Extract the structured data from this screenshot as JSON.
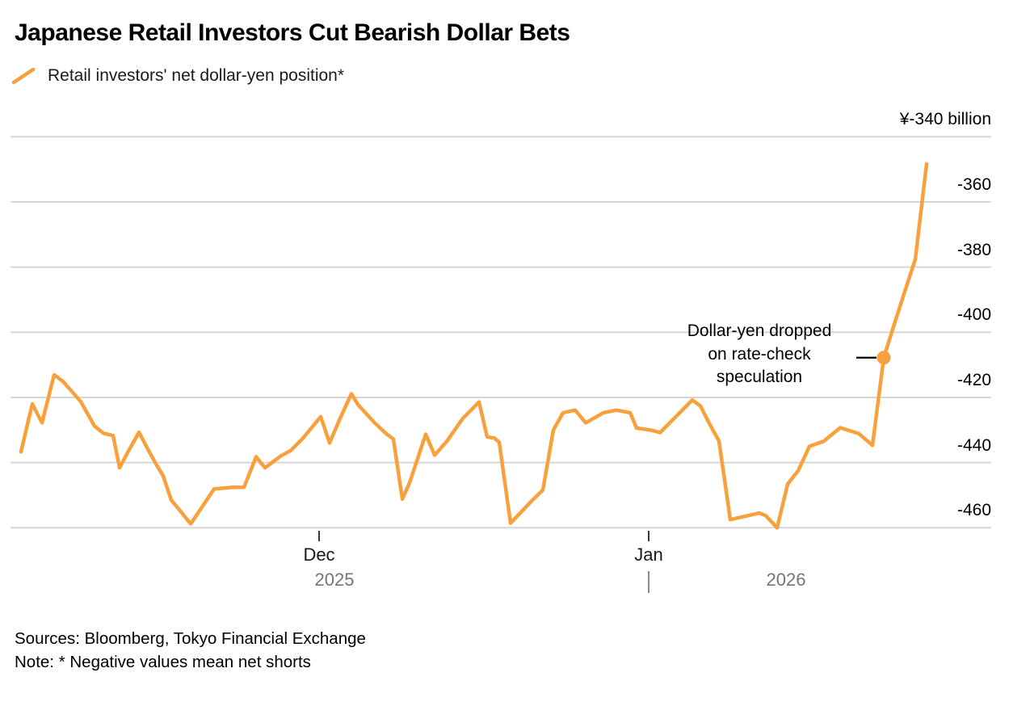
{
  "header": {
    "title": "Japanese Retail Investors Cut Bearish Dollar Bets",
    "legend": {
      "label": "Retail investors' net dollar-yen position*",
      "swatch_color": "#F8A13C"
    }
  },
  "annotation": {
    "lines": [
      "Dollar-yen dropped",
      "on rate-check",
      "speculation"
    ]
  },
  "footer": {
    "sources": "Sources: Bloomberg, Tokyo Financial Exchange",
    "note": "Note: * Negative values mean net shorts"
  },
  "chart_data": {
    "type": "line",
    "title": "Japanese Retail Investors Cut Bearish Dollar Bets",
    "unit": "yen billion",
    "grid": true,
    "grid_color": "#D6D6D6",
    "tick_color": "#3a3a3a",
    "divider_color": "#8a8a8a",
    "leader_color": "#000000",
    "y_axis": {
      "range": [
        -460,
        -340
      ],
      "ticks": [
        {
          "value": -340,
          "label": "¥-340 billion"
        },
        {
          "value": -360,
          "label": "-360"
        },
        {
          "value": -380,
          "label": "-380"
        },
        {
          "value": -400,
          "label": "-400"
        },
        {
          "value": -420,
          "label": "-420"
        },
        {
          "value": -440,
          "label": "-440"
        },
        {
          "value": -460,
          "label": "-460"
        }
      ]
    },
    "x_axis": {
      "month_ticks": [
        {
          "x": 395,
          "label": "Dec"
        },
        {
          "x": 803,
          "label": "Jan"
        }
      ],
      "year_labels": [
        {
          "x": 414,
          "label": "2025"
        },
        {
          "x": 973,
          "label": "2026"
        }
      ],
      "year_divider_x": 803
    },
    "series": [
      {
        "name": "Retail investors' net dollar-yen position",
        "color": "#F8A13C",
        "points": [
          [
            26,
            -436.7
          ],
          [
            40,
            -422.0
          ],
          [
            52,
            -427.8
          ],
          [
            67,
            -413.1
          ],
          [
            78,
            -415.1
          ],
          [
            100,
            -421.3
          ],
          [
            117,
            -428.8
          ],
          [
            128,
            -431.0
          ],
          [
            140,
            -431.7
          ],
          [
            148,
            -441.6
          ],
          [
            160,
            -436.0
          ],
          [
            172,
            -430.7
          ],
          [
            183,
            -435.9
          ],
          [
            193,
            -440.4
          ],
          [
            202,
            -444.1
          ],
          [
            212,
            -451.5
          ],
          [
            223,
            -454.8
          ],
          [
            236,
            -458.8
          ],
          [
            247,
            -454.8
          ],
          [
            265,
            -448.1
          ],
          [
            288,
            -447.6
          ],
          [
            302,
            -447.6
          ],
          [
            317,
            -438.2
          ],
          [
            328,
            -441.6
          ],
          [
            348,
            -437.9
          ],
          [
            360,
            -436.3
          ],
          [
            375,
            -432.5
          ],
          [
            397,
            -425.9
          ],
          [
            408,
            -434.0
          ],
          [
            421,
            -426.4
          ],
          [
            435,
            -418.9
          ],
          [
            443,
            -422.2
          ],
          [
            463,
            -427.6
          ],
          [
            477,
            -430.9
          ],
          [
            487,
            -432.8
          ],
          [
            498,
            -451.2
          ],
          [
            507,
            -446.2
          ],
          [
            527,
            -431.3
          ],
          [
            538,
            -437.7
          ],
          [
            553,
            -433.5
          ],
          [
            573,
            -426.4
          ],
          [
            593,
            -421.4
          ],
          [
            603,
            -432.1
          ],
          [
            612,
            -432.5
          ],
          [
            618,
            -433.8
          ],
          [
            632,
            -458.6
          ],
          [
            645,
            -455.2
          ],
          [
            658,
            -451.8
          ],
          [
            672,
            -448.4
          ],
          [
            685,
            -430.0
          ],
          [
            697,
            -424.7
          ],
          [
            712,
            -423.9
          ],
          [
            725,
            -427.8
          ],
          [
            747,
            -424.7
          ],
          [
            763,
            -423.9
          ],
          [
            780,
            -424.7
          ],
          [
            788,
            -429.4
          ],
          [
            807,
            -430.1
          ],
          [
            817,
            -430.8
          ],
          [
            833,
            -426.8
          ],
          [
            857,
            -420.8
          ],
          [
            867,
            -422.6
          ],
          [
            878,
            -428.0
          ],
          [
            890,
            -433.4
          ],
          [
            904,
            -457.5
          ],
          [
            922,
            -456.5
          ],
          [
            940,
            -455.5
          ],
          [
            948,
            -456.3
          ],
          [
            962,
            -460.0
          ],
          [
            975,
            -446.6
          ],
          [
            988,
            -442.5
          ],
          [
            1002,
            -435.0
          ],
          [
            1020,
            -433.4
          ],
          [
            1040,
            -429.3
          ],
          [
            1063,
            -431.1
          ],
          [
            1080,
            -434.7
          ],
          [
            1094,
            -407.8
          ],
          [
            1107,
            -397.5
          ],
          [
            1120,
            -387.5
          ],
          [
            1133,
            -377.6
          ],
          [
            1147,
            -348.3
          ]
        ]
      }
    ],
    "annotation_point": {
      "x": 1094,
      "value": -407.8
    }
  }
}
